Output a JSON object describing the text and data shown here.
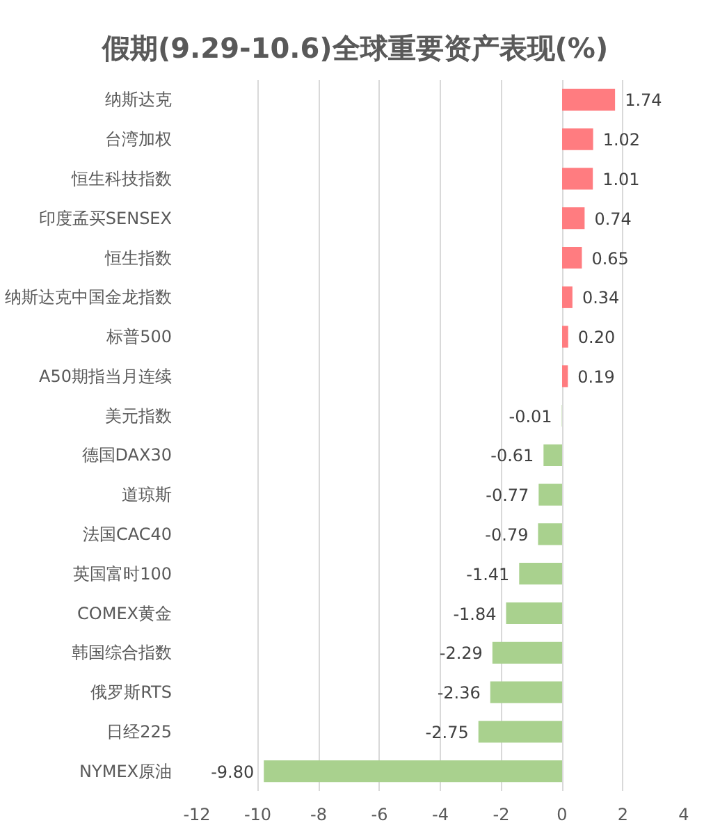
{
  "chart_data": {
    "type": "bar",
    "orientation": "horizontal",
    "title": "假期(9.29-10.6)全球重要资产表现(%)",
    "categories": [
      "纳斯达克",
      "台湾加权",
      "恒生科技指数",
      "印度孟买SENSEX",
      "恒生指数",
      "纳斯达克中国金龙指数",
      "标普500",
      "A50期指当月连续",
      "美元指数",
      "德国DAX30",
      "道琼斯",
      "法国CAC40",
      "英国富时100",
      "COMEX黄金",
      "韩国综合指数",
      "俄罗斯RTS",
      "日经225",
      "NYMEX原油"
    ],
    "values": [
      1.74,
      1.02,
      1.01,
      0.74,
      0.65,
      0.34,
      0.2,
      0.19,
      -0.01,
      -0.61,
      -0.77,
      -0.79,
      -1.41,
      -1.84,
      -2.29,
      -2.36,
      -2.75,
      -9.8
    ],
    "value_labels": [
      "1.74",
      "1.02",
      "1.01",
      "0.74",
      "0.65",
      "0.34",
      "0.20",
      "0.19",
      "-0.01",
      "-0.61",
      "-0.77",
      "-0.79",
      "-1.41",
      "-1.84",
      "-2.29",
      "-2.36",
      "-2.75",
      "-9.80"
    ],
    "colors": [
      "#ff7c80",
      "#ff7c80",
      "#ff7c80",
      "#ff7c80",
      "#ff7c80",
      "#ff7c80",
      "#ff7c80",
      "#ff7c80",
      "#a9d18e",
      "#a9d18e",
      "#a9d18e",
      "#a9d18e",
      "#a9d18e",
      "#a9d18e",
      "#a9d18e",
      "#a9d18e",
      "#a9d18e",
      "#a9d18e"
    ],
    "xlim": [
      -12,
      4
    ],
    "xticks": [
      -12,
      -10,
      -8,
      -6,
      -4,
      -2,
      0,
      2,
      4
    ],
    "grid": "x"
  }
}
